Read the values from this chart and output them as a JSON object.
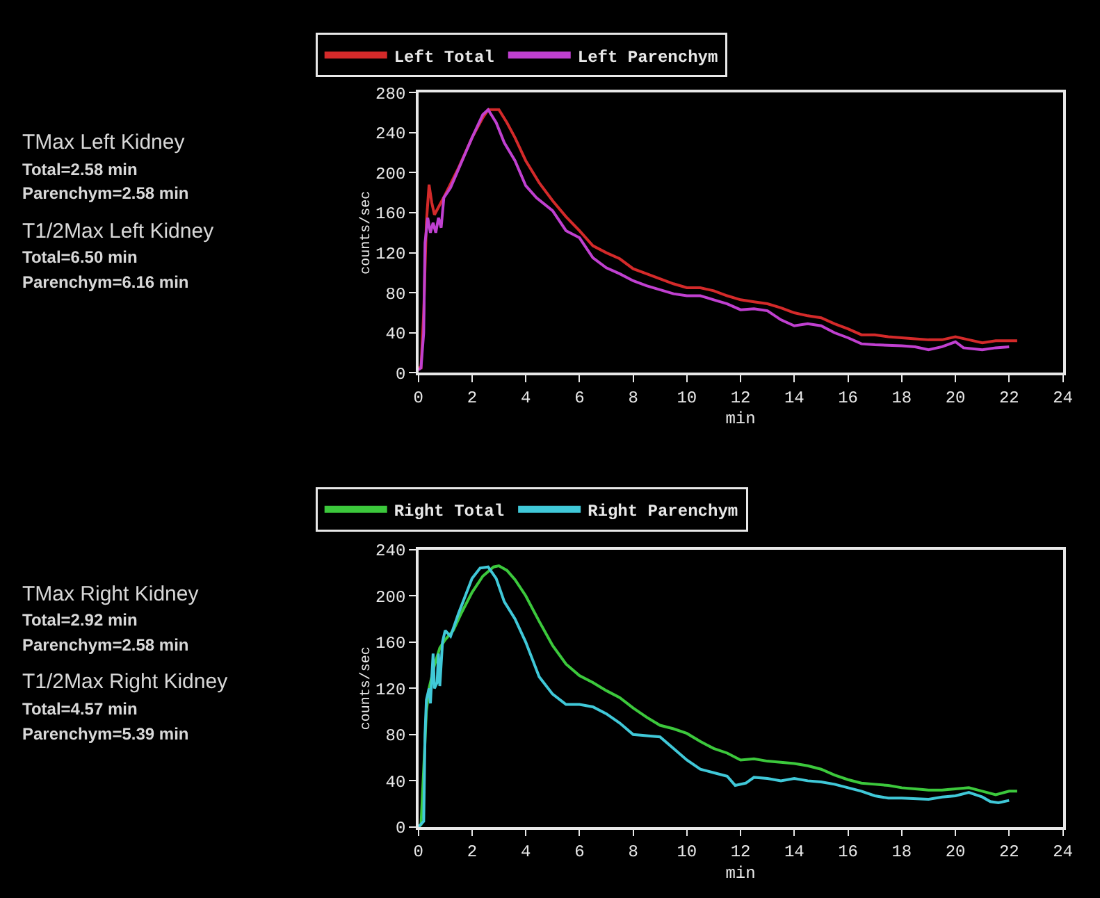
{
  "chart_data": [
    {
      "type": "line",
      "xlabel": "min",
      "ylabel": "counts/sec",
      "xlim": [
        0,
        24
      ],
      "xticks": [
        0,
        2,
        4,
        6,
        8,
        10,
        12,
        14,
        16,
        18,
        20,
        22,
        24
      ],
      "ylim": [
        0,
        280
      ],
      "yticks": [
        0,
        40,
        80,
        120,
        160,
        200,
        240,
        280
      ],
      "grid": false,
      "legend": "top",
      "marker": "none",
      "line_style": "solid",
      "annotations": [
        "TMax Left Kidney",
        "Total=2.58 min",
        "Parenchym=2.58 min",
        "T1/2Max Left Kidney",
        "Total=6.50 min",
        "Parenchym=6.16 min"
      ],
      "series": [
        {
          "name": "Left Total",
          "color": "#d42a2a",
          "x": [
            0,
            0.1,
            0.2,
            0.3,
            0.4,
            0.5,
            0.6,
            0.8,
            1.0,
            1.5,
            2.0,
            2.4,
            2.6,
            3.0,
            3.3,
            3.6,
            4.0,
            4.5,
            5.0,
            5.5,
            6.0,
            6.5,
            7.0,
            7.5,
            8.0,
            8.5,
            9.0,
            9.5,
            10.0,
            10.5,
            11.0,
            11.5,
            12.0,
            12.5,
            13.0,
            13.5,
            14.0,
            14.5,
            15.0,
            15.5,
            16.0,
            16.5,
            17.0,
            17.5,
            18.0,
            18.5,
            19.0,
            19.5,
            20.0,
            20.5,
            21.0,
            21.5,
            22.0,
            22.3
          ],
          "values": [
            5,
            5,
            60,
            150,
            188,
            170,
            158,
            168,
            178,
            205,
            235,
            255,
            263,
            263,
            250,
            235,
            212,
            190,
            172,
            156,
            142,
            127,
            120,
            114,
            104,
            99,
            94,
            89,
            85,
            85,
            82,
            77,
            73,
            71,
            69,
            65,
            60,
            57,
            55,
            49,
            44,
            38,
            38,
            36,
            35,
            34,
            33,
            33,
            36,
            33,
            30,
            32,
            32,
            32
          ]
        },
        {
          "name": "Left Parenchym",
          "color": "#c040d0",
          "x": [
            0,
            0.1,
            0.2,
            0.25,
            0.35,
            0.45,
            0.55,
            0.65,
            0.75,
            0.85,
            0.95,
            1.2,
            1.6,
            2.0,
            2.4,
            2.6,
            2.9,
            3.2,
            3.6,
            4.0,
            4.4,
            5.0,
            5.5,
            6.0,
            6.5,
            7.0,
            7.5,
            8.0,
            8.5,
            9.0,
            9.5,
            10.0,
            10.5,
            11.0,
            11.5,
            12.0,
            12.5,
            13.0,
            13.5,
            14.0,
            14.5,
            15.0,
            15.5,
            16.0,
            16.5,
            17.0,
            18.0,
            18.5,
            19.0,
            19.5,
            20.0,
            20.3,
            21.0,
            21.5,
            22.0
          ],
          "values": [
            3,
            5,
            40,
            130,
            155,
            140,
            150,
            140,
            155,
            145,
            175,
            185,
            210,
            235,
            258,
            263,
            250,
            230,
            212,
            187,
            175,
            162,
            142,
            135,
            115,
            105,
            99,
            92,
            87,
            83,
            79,
            77,
            77,
            73,
            69,
            63,
            64,
            62,
            53,
            47,
            49,
            47,
            40,
            35,
            29,
            28,
            27,
            26,
            23,
            26,
            31,
            25,
            23,
            25,
            26
          ]
        }
      ]
    },
    {
      "type": "line",
      "xlabel": "min",
      "ylabel": "counts/sec",
      "xlim": [
        0,
        24
      ],
      "xticks": [
        0,
        2,
        4,
        6,
        8,
        10,
        12,
        14,
        16,
        18,
        20,
        22,
        24
      ],
      "ylim": [
        0,
        240
      ],
      "yticks": [
        0,
        40,
        80,
        120,
        160,
        200,
        240
      ],
      "grid": false,
      "legend": "top",
      "marker": "none",
      "line_style": "solid",
      "annotations": [
        "TMax Right Kidney",
        "Total=2.92 min",
        "Parenchym=2.58 min",
        "T1/2Max Right Kidney",
        "Total=4.57 min",
        "Parenchym=5.39 min"
      ],
      "series": [
        {
          "name": "Right Total",
          "color": "#3cc83c",
          "x": [
            0,
            0.1,
            0.2,
            0.3,
            0.4,
            0.6,
            0.8,
            1.0,
            1.3,
            1.6,
            2.0,
            2.4,
            2.8,
            3.0,
            3.3,
            3.6,
            4.0,
            4.5,
            5.0,
            5.5,
            6.0,
            6.5,
            7.0,
            7.5,
            8.0,
            8.5,
            9.0,
            9.5,
            10.0,
            10.5,
            11.0,
            11.5,
            12.0,
            12.5,
            13.0,
            13.5,
            14.0,
            14.5,
            15.0,
            15.5,
            16.0,
            16.5,
            17.0,
            17.5,
            18.0,
            18.5,
            19.0,
            19.5,
            20.0,
            20.5,
            21.0,
            21.5,
            22.0,
            22.3
          ],
          "values": [
            0,
            2,
            50,
            100,
            120,
            140,
            155,
            162,
            170,
            185,
            203,
            217,
            225,
            226,
            222,
            214,
            200,
            178,
            157,
            141,
            131,
            125,
            118,
            112,
            103,
            95,
            88,
            85,
            81,
            74,
            68,
            64,
            58,
            59,
            57,
            56,
            55,
            53,
            50,
            45,
            41,
            38,
            37,
            36,
            34,
            33,
            32,
            32,
            33,
            34,
            31,
            28,
            31,
            31
          ]
        },
        {
          "name": "Right Parenchym",
          "color": "#40c8d8",
          "x": [
            0,
            0.2,
            0.25,
            0.3,
            0.4,
            0.45,
            0.55,
            0.6,
            0.7,
            0.75,
            0.8,
            0.9,
            1.0,
            1.2,
            1.5,
            2.0,
            2.3,
            2.6,
            2.9,
            3.2,
            3.6,
            4.0,
            4.5,
            5.0,
            5.5,
            6.0,
            6.5,
            7.0,
            7.5,
            8.0,
            8.5,
            9.0,
            9.5,
            10.0,
            10.5,
            11.0,
            11.5,
            11.8,
            12.2,
            12.5,
            13.0,
            13.5,
            14.0,
            14.5,
            15.0,
            15.5,
            16.0,
            16.5,
            17.0,
            17.5,
            18.0,
            19.0,
            19.5,
            20.0,
            20.5,
            21.0,
            21.3,
            21.6,
            22.0
          ],
          "values": [
            0,
            5,
            80,
            110,
            120,
            107,
            150,
            120,
            125,
            150,
            122,
            160,
            170,
            165,
            185,
            215,
            224,
            225,
            215,
            195,
            180,
            160,
            130,
            115,
            106,
            106,
            104,
            98,
            90,
            80,
            79,
            78,
            68,
            58,
            50,
            47,
            44,
            36,
            38,
            43,
            42,
            40,
            42,
            40,
            39,
            37,
            34,
            31,
            27,
            25,
            25,
            24,
            26,
            27,
            30,
            26,
            22,
            21,
            23
          ]
        }
      ]
    }
  ]
}
